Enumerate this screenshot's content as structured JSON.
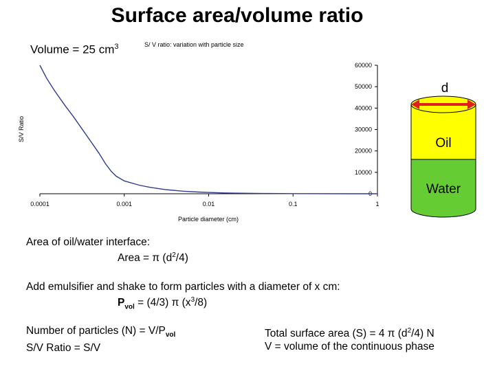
{
  "slide": {
    "title": "Surface area/volume ratio",
    "volume_label": "Volume = 25 cm",
    "volume_unit_exp": "3"
  },
  "chart_data": {
    "type": "line",
    "title": "S/ V ratio: variation with particle size",
    "xlabel": "Particle diameter (cm)",
    "ylabel": "S/V Ratio",
    "x_scale": "log",
    "xlim": [
      0.0001,
      1
    ],
    "ylim": [
      0,
      60000
    ],
    "x_ticks": [
      "0.0001",
      "0.001",
      "0.01",
      "0.1",
      "1"
    ],
    "y_ticks": [
      "60000",
      "50000",
      "40000",
      "30000",
      "20000",
      "10000",
      "0"
    ],
    "y_axis_position": "right",
    "grid": false,
    "legend": "none",
    "series": [
      {
        "color": "#2f3b8f",
        "x": [
          0.0001,
          0.00012,
          0.00015,
          0.0002,
          0.00025,
          0.0003,
          0.0004,
          0.0005,
          0.0006,
          0.0007,
          0.0008,
          0.001,
          0.0015,
          0.002,
          0.003,
          0.005,
          0.0075,
          0.01,
          0.015,
          0.02,
          0.05,
          0.1,
          0.5,
          1
        ],
        "y": [
          60000,
          54000,
          48000,
          41000,
          36000,
          31500,
          24500,
          19000,
          14000,
          10500,
          8200,
          6000,
          4000,
          3000,
          2000,
          1200,
          800,
          600,
          400,
          300,
          120,
          60,
          12,
          6
        ]
      }
    ]
  },
  "diagram": {
    "d_label": "d",
    "oil_label": "Oil",
    "water_label": "Water",
    "oil_color": "#ffff00",
    "water_color": "#66cc33",
    "arrow_color": "#e0201a"
  },
  "text": {
    "interface_line1": "Area of oil/water interface:",
    "interface_line2": "Area = π (d",
    "interface_line2_exp": "2",
    "interface_line2_end": "/4)",
    "emulsifier_line1": "Add emulsifier and shake to form particles with a diameter of  x cm:",
    "pvol_P": "P",
    "pvol_sub": "vol",
    "pvol_rest": " = (4/3) π (x",
    "pvol_exp": "3",
    "pvol_end": "/8)",
    "num_particles": "Number of particles (N) = V/P",
    "num_particles_sub": "vol",
    "sv_ratio": "S/V Ratio = S/V",
    "total_area": "Total surface area (S) = 4 π (d",
    "total_area_exp": "2",
    "total_area_end": "/4) N",
    "volume_def": "V = volume of the continuous phase"
  }
}
